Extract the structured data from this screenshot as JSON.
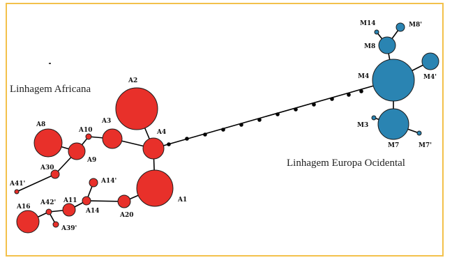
{
  "diagram": {
    "lineages": {
      "african": "Linhagem Africana",
      "european": "Linhagem Europa Ocidental"
    },
    "colors": {
      "african": "#e8302a",
      "european": "#2a84b2",
      "edge": "#000000",
      "frame": "#f3c14b"
    },
    "haplotypes": {
      "a2": "A2",
      "a4": "A4",
      "a3": "A3",
      "a10": "A10",
      "a8": "A8",
      "a9": "A9",
      "a30": "A30",
      "a41p": "A41'",
      "a1": "A1",
      "a14p": "A14'",
      "a14": "A14",
      "a11": "A11",
      "a20": "A20",
      "a42p": "A42'",
      "a16": "A16",
      "a39p": "A39'",
      "m14": "M14",
      "m8p": "M8'",
      "m8": "M8",
      "m4": "M4",
      "m4p": "M4'",
      "m3": "M3",
      "m7": "M7",
      "m7p": "M7'"
    }
  }
}
